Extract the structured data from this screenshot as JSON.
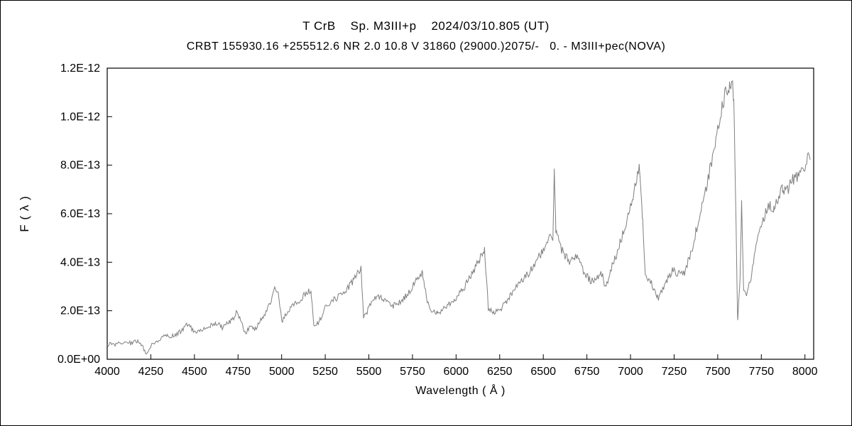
{
  "chart_data": {
    "type": "line",
    "title_line1": "T CrB    Sp. M3III+p    2024/03/10.805 (UT)",
    "title_line2": "CRBT 155930.16 +255512.6 NR 2.0 10.8 V 31860 (29000.)2075/-   0. - M3III+pec(NOVA)",
    "xlabel": "Wavelength ( Å )",
    "ylabel": "F ( λ )",
    "x_range": [
      4000,
      8050
    ],
    "y_range": [
      0,
      1.2e-12
    ],
    "y_range_units": [
      0,
      12
    ],
    "y_unit_scale": 1e-13,
    "grid": false,
    "legend": "none",
    "x_ticks": [
      4000,
      4250,
      4500,
      4750,
      5000,
      5250,
      5500,
      5750,
      6000,
      6250,
      6500,
      6750,
      7000,
      7250,
      7500,
      7750,
      8000
    ],
    "x_tick_labels": [
      "4000",
      "4250",
      "4500",
      "4750",
      "5000",
      "5250",
      "5500",
      "5750",
      "6000",
      "6250",
      "6500",
      "6750",
      "7000",
      "7250",
      "7500",
      "7750",
      "8000"
    ],
    "y_ticks_units": [
      0,
      2,
      4,
      6,
      8,
      10,
      12
    ],
    "y_tick_labels": [
      "0.0E+00",
      "2.0E-13",
      "4.0E-13",
      "6.0E-13",
      "8.0E-13",
      "1.0E-12",
      "1.2E-12"
    ],
    "line_color": "#7f7f7f",
    "sample_step": 5,
    "noise_base": 0.06,
    "noise_frac": 0.03,
    "seed": 20240310,
    "points": [
      [
        4000,
        0.6
      ],
      [
        4020,
        0.65
      ],
      [
        4050,
        0.6
      ],
      [
        4080,
        0.7
      ],
      [
        4110,
        0.72
      ],
      [
        4140,
        0.65
      ],
      [
        4170,
        0.75
      ],
      [
        4200,
        0.6
      ],
      [
        4225,
        0.15
      ],
      [
        4250,
        0.55
      ],
      [
        4280,
        0.75
      ],
      [
        4310,
        0.85
      ],
      [
        4340,
        1.0
      ],
      [
        4370,
        0.95
      ],
      [
        4400,
        1.05
      ],
      [
        4430,
        1.2
      ],
      [
        4460,
        1.45
      ],
      [
        4490,
        1.2
      ],
      [
        4520,
        1.1
      ],
      [
        4560,
        1.25
      ],
      [
        4600,
        1.4
      ],
      [
        4630,
        1.5
      ],
      [
        4660,
        1.3
      ],
      [
        4690,
        1.5
      ],
      [
        4720,
        1.65
      ],
      [
        4745,
        2.0
      ],
      [
        4765,
        1.6
      ],
      [
        4790,
        1.1
      ],
      [
        4820,
        1.3
      ],
      [
        4850,
        1.25
      ],
      [
        4880,
        1.6
      ],
      [
        4910,
        1.9
      ],
      [
        4940,
        2.4
      ],
      [
        4960,
        2.9
      ],
      [
        4985,
        2.6
      ],
      [
        5000,
        1.55
      ],
      [
        5030,
        1.9
      ],
      [
        5070,
        2.25
      ],
      [
        5110,
        2.5
      ],
      [
        5150,
        2.8
      ],
      [
        5168,
        2.85
      ],
      [
        5185,
        1.45
      ],
      [
        5215,
        1.55
      ],
      [
        5250,
        2.1
      ],
      [
        5290,
        2.4
      ],
      [
        5330,
        2.6
      ],
      [
        5370,
        2.9
      ],
      [
        5410,
        3.2
      ],
      [
        5440,
        3.6
      ],
      [
        5455,
        3.8
      ],
      [
        5470,
        1.75
      ],
      [
        5500,
        2.1
      ],
      [
        5535,
        2.6
      ],
      [
        5565,
        2.55
      ],
      [
        5600,
        2.45
      ],
      [
        5630,
        2.15
      ],
      [
        5665,
        2.3
      ],
      [
        5700,
        2.5
      ],
      [
        5740,
        2.9
      ],
      [
        5780,
        3.3
      ],
      [
        5808,
        3.55
      ],
      [
        5835,
        2.3
      ],
      [
        5865,
        2.0
      ],
      [
        5893,
        1.85
      ],
      [
        5925,
        2.1
      ],
      [
        5960,
        2.3
      ],
      [
        6000,
        2.55
      ],
      [
        6050,
        3.0
      ],
      [
        6100,
        3.6
      ],
      [
        6140,
        4.2
      ],
      [
        6163,
        4.6
      ],
      [
        6185,
        2.1
      ],
      [
        6220,
        1.95
      ],
      [
        6260,
        2.1
      ],
      [
        6300,
        2.5
      ],
      [
        6350,
        3.0
      ],
      [
        6400,
        3.4
      ],
      [
        6450,
        3.9
      ],
      [
        6500,
        4.5
      ],
      [
        6535,
        4.95
      ],
      [
        6555,
        5.1
      ],
      [
        6563,
        7.7
      ],
      [
        6572,
        5.2
      ],
      [
        6600,
        4.6
      ],
      [
        6630,
        4.2
      ],
      [
        6660,
        4.0
      ],
      [
        6685,
        4.3
      ],
      [
        6715,
        3.85
      ],
      [
        6745,
        3.45
      ],
      [
        6775,
        3.2
      ],
      [
        6805,
        3.3
      ],
      [
        6835,
        3.5
      ],
      [
        6860,
        2.95
      ],
      [
        6890,
        3.8
      ],
      [
        6925,
        4.4
      ],
      [
        6960,
        5.3
      ],
      [
        7000,
        6.3
      ],
      [
        7030,
        7.2
      ],
      [
        7052,
        8.0
      ],
      [
        7068,
        6.0
      ],
      [
        7085,
        3.5
      ],
      [
        7120,
        3.1
      ],
      [
        7160,
        2.5
      ],
      [
        7200,
        3.1
      ],
      [
        7240,
        3.7
      ],
      [
        7270,
        3.5
      ],
      [
        7310,
        3.6
      ],
      [
        7350,
        4.5
      ],
      [
        7400,
        6.0
      ],
      [
        7450,
        7.6
      ],
      [
        7500,
        9.6
      ],
      [
        7540,
        10.8
      ],
      [
        7568,
        11.3
      ],
      [
        7592,
        11.0
      ],
      [
        7603,
        6.5
      ],
      [
        7614,
        1.6
      ],
      [
        7628,
        3.3
      ],
      [
        7637,
        6.4
      ],
      [
        7648,
        2.9
      ],
      [
        7665,
        2.7
      ],
      [
        7690,
        3.3
      ],
      [
        7715,
        4.6
      ],
      [
        7735,
        5.3
      ],
      [
        7755,
        5.6
      ],
      [
        7775,
        6.0
      ],
      [
        7800,
        6.4
      ],
      [
        7822,
        6.15
      ],
      [
        7850,
        6.7
      ],
      [
        7872,
        7.1
      ],
      [
        7895,
        6.85
      ],
      [
        7920,
        7.3
      ],
      [
        7950,
        7.5
      ],
      [
        7975,
        7.85
      ],
      [
        8005,
        8.1
      ],
      [
        8030,
        8.3
      ]
    ]
  }
}
